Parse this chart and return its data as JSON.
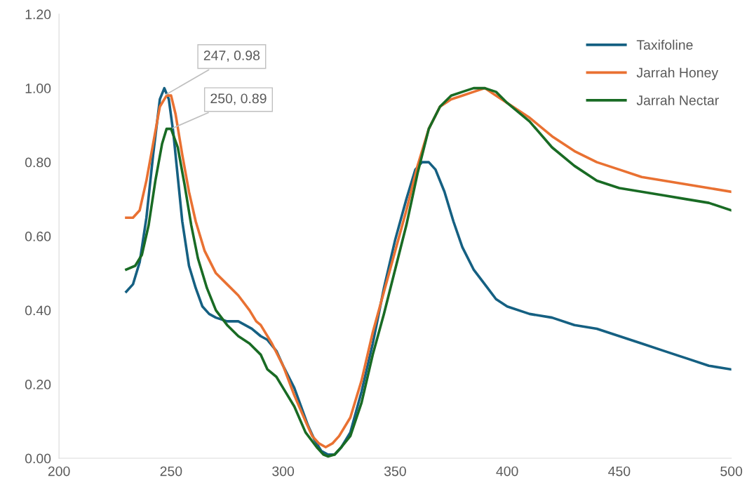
{
  "chart_data": {
    "type": "line",
    "xlim": [
      200,
      500
    ],
    "xticks": [
      200,
      250,
      300,
      350,
      400,
      450,
      500
    ],
    "ylim": [
      0,
      1.2
    ],
    "yticks": [
      {
        "value": 0,
        "label": "0.00"
      },
      {
        "value": 0.2,
        "label": "0.20"
      },
      {
        "value": 0.4,
        "label": "0.40"
      },
      {
        "value": 0.6,
        "label": "0.60"
      },
      {
        "value": 0.8,
        "label": "0.80"
      },
      {
        "value": 1.0,
        "label": "1.00"
      },
      {
        "value": 1.2,
        "label": "1.20"
      }
    ],
    "grid": false,
    "legend": "top right",
    "marker": "none",
    "line_style": "solid",
    "annotations": [
      {
        "text": "247, 0.98",
        "x": 247,
        "y": 0.98
      },
      {
        "text": "250, 0.89",
        "x": 250,
        "y": 0.89
      }
    ],
    "series": [
      {
        "name": "Taxifoline",
        "color": "#156082",
        "x": [
          230,
          233,
          236,
          239,
          242,
          245,
          247,
          249,
          251,
          253,
          255,
          258,
          261,
          264,
          267,
          270,
          275,
          280,
          283,
          286,
          290,
          293,
          297,
          300,
          305,
          308,
          311,
          314,
          317,
          320,
          323,
          326,
          330,
          335,
          340,
          345,
          350,
          355,
          359,
          362,
          365,
          368,
          372,
          376,
          380,
          385,
          390,
          395,
          400,
          410,
          420,
          430,
          440,
          450,
          460,
          470,
          480,
          490,
          500
        ],
        "values": [
          0.45,
          0.47,
          0.53,
          0.65,
          0.82,
          0.97,
          1.0,
          0.97,
          0.88,
          0.76,
          0.64,
          0.52,
          0.46,
          0.41,
          0.39,
          0.38,
          0.37,
          0.37,
          0.36,
          0.35,
          0.33,
          0.32,
          0.29,
          0.25,
          0.19,
          0.14,
          0.09,
          0.05,
          0.02,
          0.01,
          0.01,
          0.03,
          0.07,
          0.18,
          0.31,
          0.46,
          0.59,
          0.7,
          0.78,
          0.8,
          0.8,
          0.78,
          0.72,
          0.64,
          0.57,
          0.51,
          0.47,
          0.43,
          0.41,
          0.39,
          0.38,
          0.36,
          0.35,
          0.33,
          0.31,
          0.29,
          0.27,
          0.25,
          0.24
        ]
      },
      {
        "name": "Jarrah Honey",
        "color": "#e97132",
        "x": [
          230,
          233,
          236,
          239,
          242,
          245,
          248,
          250,
          252,
          255,
          258,
          261,
          265,
          270,
          275,
          280,
          285,
          288,
          290,
          295,
          300,
          305,
          310,
          313,
          316,
          319,
          322,
          325,
          330,
          335,
          340,
          345,
          350,
          355,
          360,
          365,
          370,
          375,
          380,
          385,
          390,
          395,
          400,
          410,
          420,
          430,
          440,
          450,
          460,
          470,
          480,
          490,
          500
        ],
        "values": [
          0.65,
          0.65,
          0.67,
          0.75,
          0.85,
          0.95,
          0.98,
          0.98,
          0.93,
          0.82,
          0.72,
          0.64,
          0.56,
          0.5,
          0.47,
          0.44,
          0.4,
          0.37,
          0.36,
          0.31,
          0.25,
          0.17,
          0.1,
          0.06,
          0.04,
          0.03,
          0.04,
          0.06,
          0.11,
          0.21,
          0.34,
          0.45,
          0.56,
          0.67,
          0.79,
          0.89,
          0.95,
          0.97,
          0.98,
          0.99,
          1.0,
          0.98,
          0.96,
          0.92,
          0.87,
          0.83,
          0.8,
          0.78,
          0.76,
          0.75,
          0.74,
          0.73,
          0.72
        ]
      },
      {
        "name": "Jarrah Nectar",
        "color": "#196b24",
        "x": [
          230,
          234,
          237,
          240,
          243,
          246,
          248,
          250,
          253,
          256,
          259,
          262,
          266,
          270,
          275,
          280,
          285,
          290,
          293,
          297,
          300,
          305,
          310,
          315,
          318,
          320,
          323,
          326,
          330,
          335,
          340,
          345,
          350,
          355,
          360,
          365,
          370,
          375,
          380,
          385,
          390,
          395,
          400,
          410,
          420,
          430,
          440,
          450,
          460,
          470,
          480,
          490,
          500
        ],
        "values": [
          0.51,
          0.52,
          0.55,
          0.63,
          0.75,
          0.85,
          0.89,
          0.89,
          0.84,
          0.74,
          0.63,
          0.54,
          0.46,
          0.4,
          0.36,
          0.33,
          0.31,
          0.28,
          0.24,
          0.22,
          0.19,
          0.14,
          0.07,
          0.03,
          0.01,
          0.005,
          0.01,
          0.03,
          0.06,
          0.15,
          0.28,
          0.39,
          0.51,
          0.63,
          0.77,
          0.89,
          0.95,
          0.98,
          0.99,
          1.0,
          1.0,
          0.99,
          0.96,
          0.91,
          0.84,
          0.79,
          0.75,
          0.73,
          0.72,
          0.71,
          0.7,
          0.69,
          0.67
        ]
      }
    ]
  }
}
